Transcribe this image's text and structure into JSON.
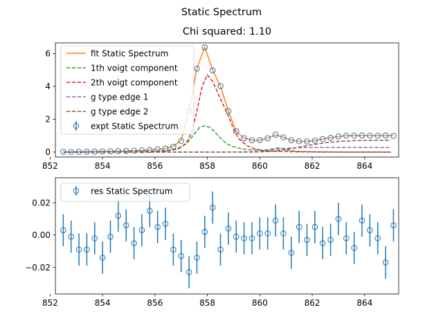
{
  "figure": {
    "suptitle": "Static Spectrum"
  },
  "chart_data": [
    {
      "type": "scatter",
      "title": "Chi squared:  1.10",
      "xlabel": "",
      "ylabel": "",
      "xlim": [
        852.2,
        865.3
      ],
      "ylim": [
        -0.3,
        6.65
      ],
      "xticks": [
        "852",
        "854",
        "856",
        "858",
        "860",
        "862",
        "864"
      ],
      "xtick_values": [
        852,
        854,
        856,
        858,
        860,
        862,
        864
      ],
      "yticks": [
        "0",
        "2",
        "4",
        "6"
      ],
      "ytick_values": [
        0,
        2,
        4,
        6
      ],
      "grid": false,
      "legend_position": "top-left",
      "series": [
        {
          "name": "fit Static Spectrum",
          "kind": "line",
          "color": "#ff7f0e",
          "dash": "solid",
          "x": [
            852.5,
            852.8,
            853.1,
            853.4,
            853.7,
            854.0,
            854.3,
            854.6,
            854.9,
            855.2,
            855.5,
            855.8,
            856.1,
            856.4,
            856.7,
            857.0,
            857.3,
            857.6,
            857.9,
            858.2,
            858.5,
            858.8,
            859.1,
            859.4,
            859.7,
            860.0,
            860.3,
            860.6,
            860.9,
            861.2,
            861.5,
            861.8,
            862.1,
            862.4,
            862.7,
            863.0,
            863.3,
            863.6,
            863.9,
            864.2,
            864.5,
            864.8,
            865.1
          ],
          "y": [
            0.01,
            0.01,
            0.02,
            0.02,
            0.03,
            0.04,
            0.05,
            0.06,
            0.07,
            0.09,
            0.1,
            0.13,
            0.16,
            0.22,
            0.35,
            0.7,
            2.5,
            5.1,
            6.4,
            5.0,
            4.0,
            2.5,
            1.25,
            0.85,
            0.72,
            0.72,
            0.85,
            1.05,
            0.9,
            0.72,
            0.65,
            0.65,
            0.7,
            0.8,
            0.88,
            0.95,
            1.0,
            1.0,
            1.0,
            1.0,
            1.0,
            1.0,
            1.0
          ]
        },
        {
          "name": "1th voigt component",
          "kind": "line",
          "color": "#2ca02c",
          "dash": "dashed",
          "x": [
            852.5,
            853.0,
            853.5,
            854.0,
            854.5,
            855.0,
            855.5,
            856.0,
            856.3,
            856.6,
            856.9,
            857.2,
            857.5,
            857.7,
            857.9,
            858.1,
            858.3,
            858.5,
            858.7,
            858.9,
            859.1,
            859.3,
            859.6,
            859.9,
            860.2,
            860.5,
            860.7,
            860.9,
            861.1,
            861.4,
            861.8,
            862.2,
            862.6,
            863.0,
            863.5,
            864.0,
            864.5,
            865.0
          ],
          "y": [
            0.0,
            0.0,
            0.01,
            0.01,
            0.01,
            0.02,
            0.03,
            0.05,
            0.08,
            0.13,
            0.25,
            0.5,
            1.1,
            1.5,
            1.6,
            1.5,
            1.2,
            0.85,
            0.55,
            0.38,
            0.28,
            0.2,
            0.14,
            0.12,
            0.12,
            0.2,
            0.25,
            0.2,
            0.1,
            0.05,
            0.02,
            0.01,
            0.01,
            0.0,
            0.0,
            0.0,
            0.0,
            0.0
          ]
        },
        {
          "name": "2th voigt component",
          "kind": "line",
          "color": "#d62728",
          "dash": "dashed",
          "x": [
            852.5,
            853.0,
            853.5,
            854.0,
            854.5,
            855.0,
            855.5,
            856.0,
            856.3,
            856.6,
            856.9,
            857.2,
            857.4,
            857.6,
            857.8,
            858.0,
            858.2,
            858.4,
            858.6,
            858.8,
            859.0,
            859.2,
            859.5,
            859.8,
            860.1,
            860.4,
            860.8,
            861.2,
            861.6,
            862.0,
            862.5,
            863.0,
            863.5,
            864.0,
            864.5,
            865.0
          ],
          "y": [
            0.0,
            0.0,
            0.0,
            0.01,
            0.01,
            0.01,
            0.02,
            0.04,
            0.06,
            0.1,
            0.2,
            0.55,
            1.2,
            2.5,
            4.0,
            4.7,
            4.3,
            3.6,
            2.9,
            2.2,
            1.4,
            0.8,
            0.4,
            0.2,
            0.1,
            0.06,
            0.04,
            0.02,
            0.01,
            0.01,
            0.0,
            0.0,
            0.0,
            0.0,
            0.0,
            0.0
          ]
        },
        {
          "name": "g type edge 1",
          "kind": "line",
          "color": "#9467bd",
          "dash": "dashed",
          "x": [
            852.5,
            855.0,
            857.0,
            858.5,
            859.5,
            860.0,
            860.3,
            860.6,
            860.9,
            861.2,
            861.5,
            861.8,
            862.1,
            862.5,
            863.0,
            864.0,
            865.0
          ],
          "y": [
            0.0,
            0.0,
            0.0,
            0.0,
            0.01,
            0.03,
            0.08,
            0.16,
            0.22,
            0.25,
            0.27,
            0.28,
            0.28,
            0.28,
            0.28,
            0.28,
            0.28
          ]
        },
        {
          "name": "g type edge 2",
          "kind": "line",
          "color": "#8c564b",
          "dash": "dashed",
          "x": [
            852.5,
            855.0,
            858.0,
            859.5,
            860.0,
            860.5,
            861.0,
            861.5,
            862.0,
            862.5,
            863.0,
            863.5,
            864.0,
            864.5,
            865.0
          ],
          "y": [
            0.0,
            0.0,
            0.0,
            0.0,
            0.01,
            0.05,
            0.15,
            0.3,
            0.45,
            0.57,
            0.65,
            0.69,
            0.71,
            0.72,
            0.72
          ]
        },
        {
          "name": "expt Static Spectrum",
          "kind": "errorbar",
          "color": "#1f77b4",
          "x": [
            852.5,
            852.8,
            853.1,
            853.4,
            853.7,
            854.0,
            854.3,
            854.6,
            854.9,
            855.2,
            855.5,
            855.8,
            856.1,
            856.4,
            856.7,
            857.0,
            857.3,
            857.6,
            857.9,
            858.2,
            858.5,
            858.8,
            859.1,
            859.4,
            859.7,
            860.0,
            860.3,
            860.6,
            860.9,
            861.2,
            861.5,
            861.8,
            862.1,
            862.4,
            862.7,
            863.0,
            863.3,
            863.6,
            863.9,
            864.2,
            864.5,
            864.8,
            865.1
          ],
          "y": [
            0.02,
            0.01,
            0.02,
            0.02,
            0.03,
            0.04,
            0.05,
            0.06,
            0.07,
            0.09,
            0.11,
            0.13,
            0.17,
            0.22,
            0.33,
            0.68,
            2.48,
            5.08,
            6.38,
            4.98,
            4.02,
            2.5,
            1.27,
            0.85,
            0.72,
            0.73,
            0.84,
            1.06,
            0.9,
            0.72,
            0.66,
            0.65,
            0.7,
            0.8,
            0.87,
            0.95,
            1.0,
            1.0,
            1.01,
            1.0,
            1.0,
            1.01,
            0.99
          ]
        }
      ]
    },
    {
      "type": "scatter",
      "title": "",
      "xlabel": "",
      "ylabel": "",
      "xlim": [
        852.2,
        865.3
      ],
      "ylim": [
        -0.0365,
        0.0355
      ],
      "xticks": [
        "852",
        "854",
        "856",
        "858",
        "860",
        "862",
        "864"
      ],
      "xtick_values": [
        852,
        854,
        856,
        858,
        860,
        862,
        864
      ],
      "yticks": [
        "−0.02",
        "0.00",
        "0.02"
      ],
      "ytick_values": [
        -0.02,
        0.0,
        0.02
      ],
      "grid": false,
      "legend_position": "top-left",
      "series": [
        {
          "name": "res Static Spectrum",
          "kind": "errorbar",
          "color": "#1f77b4",
          "yerr": 0.01,
          "x": [
            852.5,
            852.8,
            853.1,
            853.4,
            853.7,
            854.0,
            854.3,
            854.6,
            854.9,
            855.2,
            855.5,
            855.8,
            856.1,
            856.4,
            856.7,
            857.0,
            857.3,
            857.6,
            857.9,
            858.2,
            858.5,
            858.8,
            859.1,
            859.4,
            859.7,
            860.0,
            860.3,
            860.6,
            860.9,
            861.2,
            861.5,
            861.8,
            862.1,
            862.4,
            862.7,
            863.0,
            863.3,
            863.6,
            863.9,
            864.2,
            864.5,
            864.8,
            865.1
          ],
          "y": [
            0.003,
            -0.001,
            -0.009,
            -0.009,
            -0.002,
            -0.014,
            -0.001,
            0.012,
            0.006,
            -0.005,
            0.003,
            0.015,
            0.005,
            0.007,
            -0.009,
            -0.013,
            -0.023,
            -0.014,
            0.002,
            0.017,
            -0.009,
            0.004,
            -0.001,
            -0.002,
            -0.002,
            0.001,
            0.001,
            0.009,
            0.001,
            -0.011,
            0.005,
            -0.003,
            0.005,
            -0.005,
            -0.003,
            0.01,
            -0.002,
            -0.008,
            0.009,
            0.003,
            -0.002,
            -0.017,
            0.006
          ]
        }
      ]
    }
  ]
}
